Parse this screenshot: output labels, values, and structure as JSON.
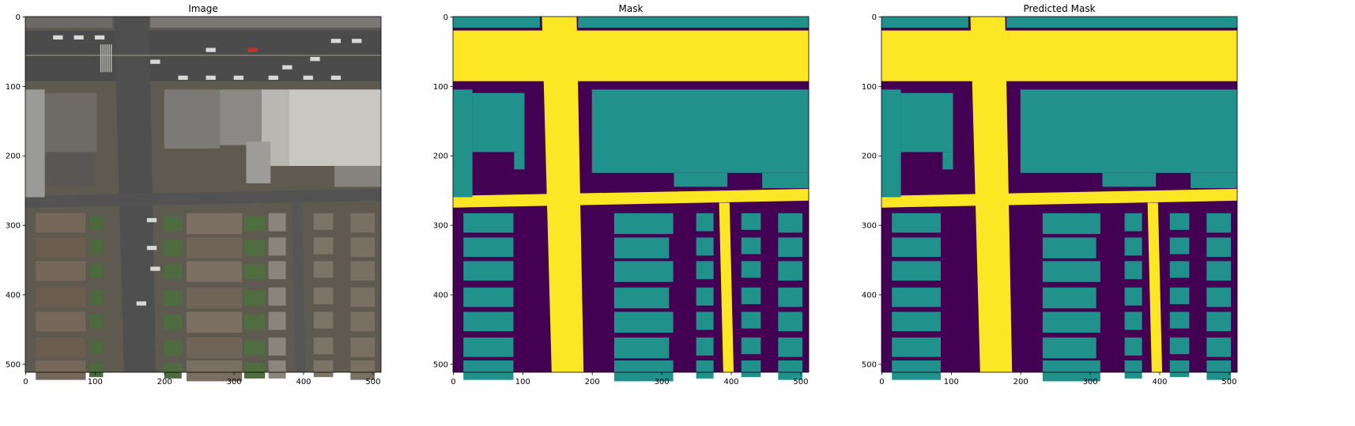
{
  "figure": {
    "panels": [
      {
        "id": "image",
        "title": "Image",
        "xticks": [
          "0",
          "100",
          "200",
          "300",
          "400",
          "500"
        ],
        "yticks": [
          "0",
          "100",
          "200",
          "300",
          "400",
          "500"
        ],
        "content": "aerial-photo"
      },
      {
        "id": "mask",
        "title": "Mask",
        "xticks": [
          "0",
          "100",
          "200",
          "300",
          "400",
          "500"
        ],
        "yticks": [
          "0",
          "100",
          "200",
          "300",
          "400",
          "500"
        ],
        "content": "segmentation-mask"
      },
      {
        "id": "pred",
        "title": "Predicted Mask",
        "xticks": [
          "0",
          "100",
          "200",
          "300",
          "400",
          "500"
        ],
        "yticks": [
          "0",
          "100",
          "200",
          "300",
          "400",
          "500"
        ],
        "content": "segmentation-mask-predicted"
      }
    ],
    "colors": {
      "background_class": "#440154",
      "building_class": "#21918c",
      "road_class": "#fde725"
    }
  }
}
